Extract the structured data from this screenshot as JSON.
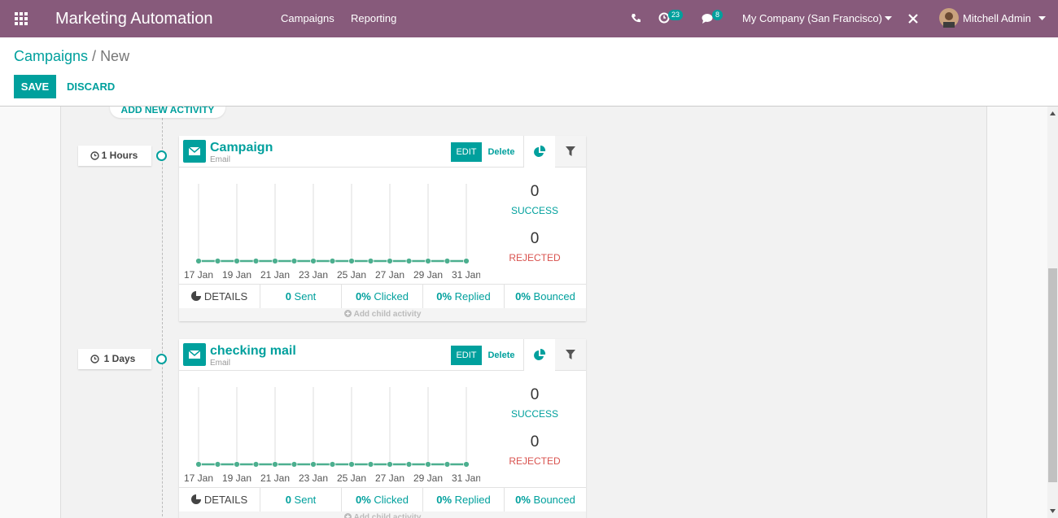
{
  "navbar": {
    "app_title": "Marketing Automation",
    "menu": [
      "Campaigns",
      "Reporting"
    ],
    "activity_count": 23,
    "message_count": 8,
    "company": "My Company (San Francisco)",
    "user": "Mitchell Admin"
  },
  "breadcrumb": {
    "parent": "Campaigns",
    "current": "New"
  },
  "buttons": {
    "save": "SAVE",
    "discard": "DISCARD"
  },
  "add_activity": "ADD NEW ACTIVITY",
  "activities": [
    {
      "trigger": "1 Hours",
      "name": "Campaign",
      "kind": "Email",
      "edit": "EDIT",
      "delete": "Delete",
      "chart": {
        "type": "line",
        "categories": [
          "17 Jan",
          null,
          "19 Jan",
          null,
          "21 Jan",
          null,
          "23 Jan",
          null,
          "25 Jan",
          null,
          "27 Jan",
          null,
          "29 Jan",
          null,
          "31 Jan"
        ],
        "values": [
          0,
          0,
          0,
          0,
          0,
          0,
          0,
          0,
          0,
          0,
          0,
          0,
          0,
          0,
          0
        ],
        "color": "#4caf8f"
      },
      "success": {
        "value": 0,
        "label": "SUCCESS"
      },
      "rejected": {
        "value": 0,
        "label": "REJECTED"
      },
      "stats": {
        "details": "DETAILS",
        "sent": {
          "value": 0,
          "label": "Sent"
        },
        "clicked": {
          "value": "0%",
          "label": "Clicked"
        },
        "replied": {
          "value": "0%",
          "label": "Replied"
        },
        "bounced": {
          "value": "0%",
          "label": "Bounced"
        }
      },
      "add_child": "Add child activity"
    },
    {
      "trigger": "1 Days",
      "name": "checking mail",
      "kind": "Email",
      "edit": "EDIT",
      "delete": "Delete",
      "chart": {
        "type": "line",
        "categories": [
          "17 Jan",
          null,
          "19 Jan",
          null,
          "21 Jan",
          null,
          "23 Jan",
          null,
          "25 Jan",
          null,
          "27 Jan",
          null,
          "29 Jan",
          null,
          "31 Jan"
        ],
        "values": [
          0,
          0,
          0,
          0,
          0,
          0,
          0,
          0,
          0,
          0,
          0,
          0,
          0,
          0,
          0
        ],
        "color": "#4caf8f"
      },
      "success": {
        "value": 0,
        "label": "SUCCESS"
      },
      "rejected": {
        "value": 0,
        "label": "REJECTED"
      },
      "stats": {
        "details": "DETAILS",
        "sent": {
          "value": 0,
          "label": "Sent"
        },
        "clicked": {
          "value": "0%",
          "label": "Clicked"
        },
        "replied": {
          "value": "0%",
          "label": "Replied"
        },
        "bounced": {
          "value": "0%",
          "label": "Bounced"
        }
      },
      "add_child": "Add child activity"
    }
  ]
}
